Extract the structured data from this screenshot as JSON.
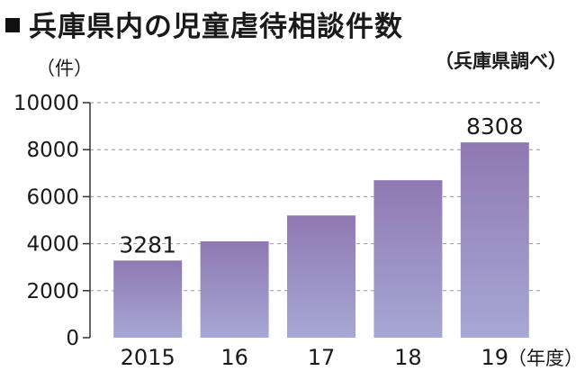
{
  "header": {
    "title": "兵庫県内の児童虐待相談件数",
    "source": "（兵庫県調べ）"
  },
  "chart_data": {
    "type": "bar",
    "title": "兵庫県内の児童虐待相談件数",
    "ylabel": "（件）",
    "xlabel": "（年度）",
    "categories": [
      "2015",
      "16",
      "17",
      "18",
      "19"
    ],
    "values": [
      3281,
      4100,
      5200,
      6700,
      8308
    ],
    "data_labels": [
      "3281",
      "",
      "",
      "",
      "8308"
    ],
    "ylim": [
      0,
      10000
    ],
    "yticks": [
      "0",
      "2000",
      "4000",
      "6000",
      "8000",
      "10000"
    ],
    "ytick_values": [
      0,
      2000,
      4000,
      6000,
      8000,
      10000
    ],
    "grid": true,
    "bar_color_top": "#8f79b3",
    "bar_color_bottom": "#a7a7d4"
  }
}
